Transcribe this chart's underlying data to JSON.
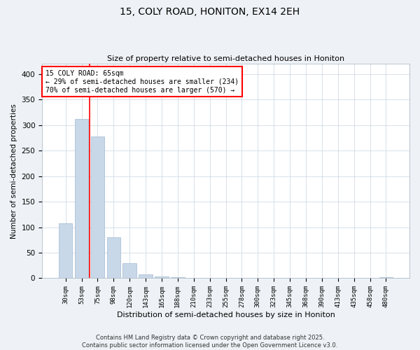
{
  "title_line1": "15, COLY ROAD, HONITON, EX14 2EH",
  "title_line2": "Size of property relative to semi-detached houses in Honiton",
  "xlabel": "Distribution of semi-detached houses by size in Honiton",
  "ylabel": "Number of semi-detached properties",
  "categories": [
    "30sqm",
    "53sqm",
    "75sqm",
    "98sqm",
    "120sqm",
    "143sqm",
    "165sqm",
    "188sqm",
    "210sqm",
    "233sqm",
    "255sqm",
    "278sqm",
    "300sqm",
    "323sqm",
    "345sqm",
    "368sqm",
    "390sqm",
    "413sqm",
    "435sqm",
    "458sqm",
    "480sqm"
  ],
  "values": [
    107,
    312,
    278,
    80,
    30,
    7,
    4,
    2,
    0,
    0,
    0,
    0,
    0,
    0,
    0,
    0,
    0,
    0,
    0,
    0,
    2
  ],
  "bar_color": "#c8d8e8",
  "bar_edge_color": "#a0b8d0",
  "vline_x": 1.5,
  "vline_color": "red",
  "annotation_text": "15 COLY ROAD: 65sqm\n← 29% of semi-detached houses are smaller (234)\n70% of semi-detached houses are larger (570) →",
  "ylim": [
    0,
    420
  ],
  "yticks": [
    0,
    50,
    100,
    150,
    200,
    250,
    300,
    350,
    400
  ],
  "footer_text": "Contains HM Land Registry data © Crown copyright and database right 2025.\nContains public sector information licensed under the Open Government Licence v3.0.",
  "bg_color": "#eef2f6",
  "plot_bg_color": "#ffffff",
  "grid_color": "#c8d4e0"
}
